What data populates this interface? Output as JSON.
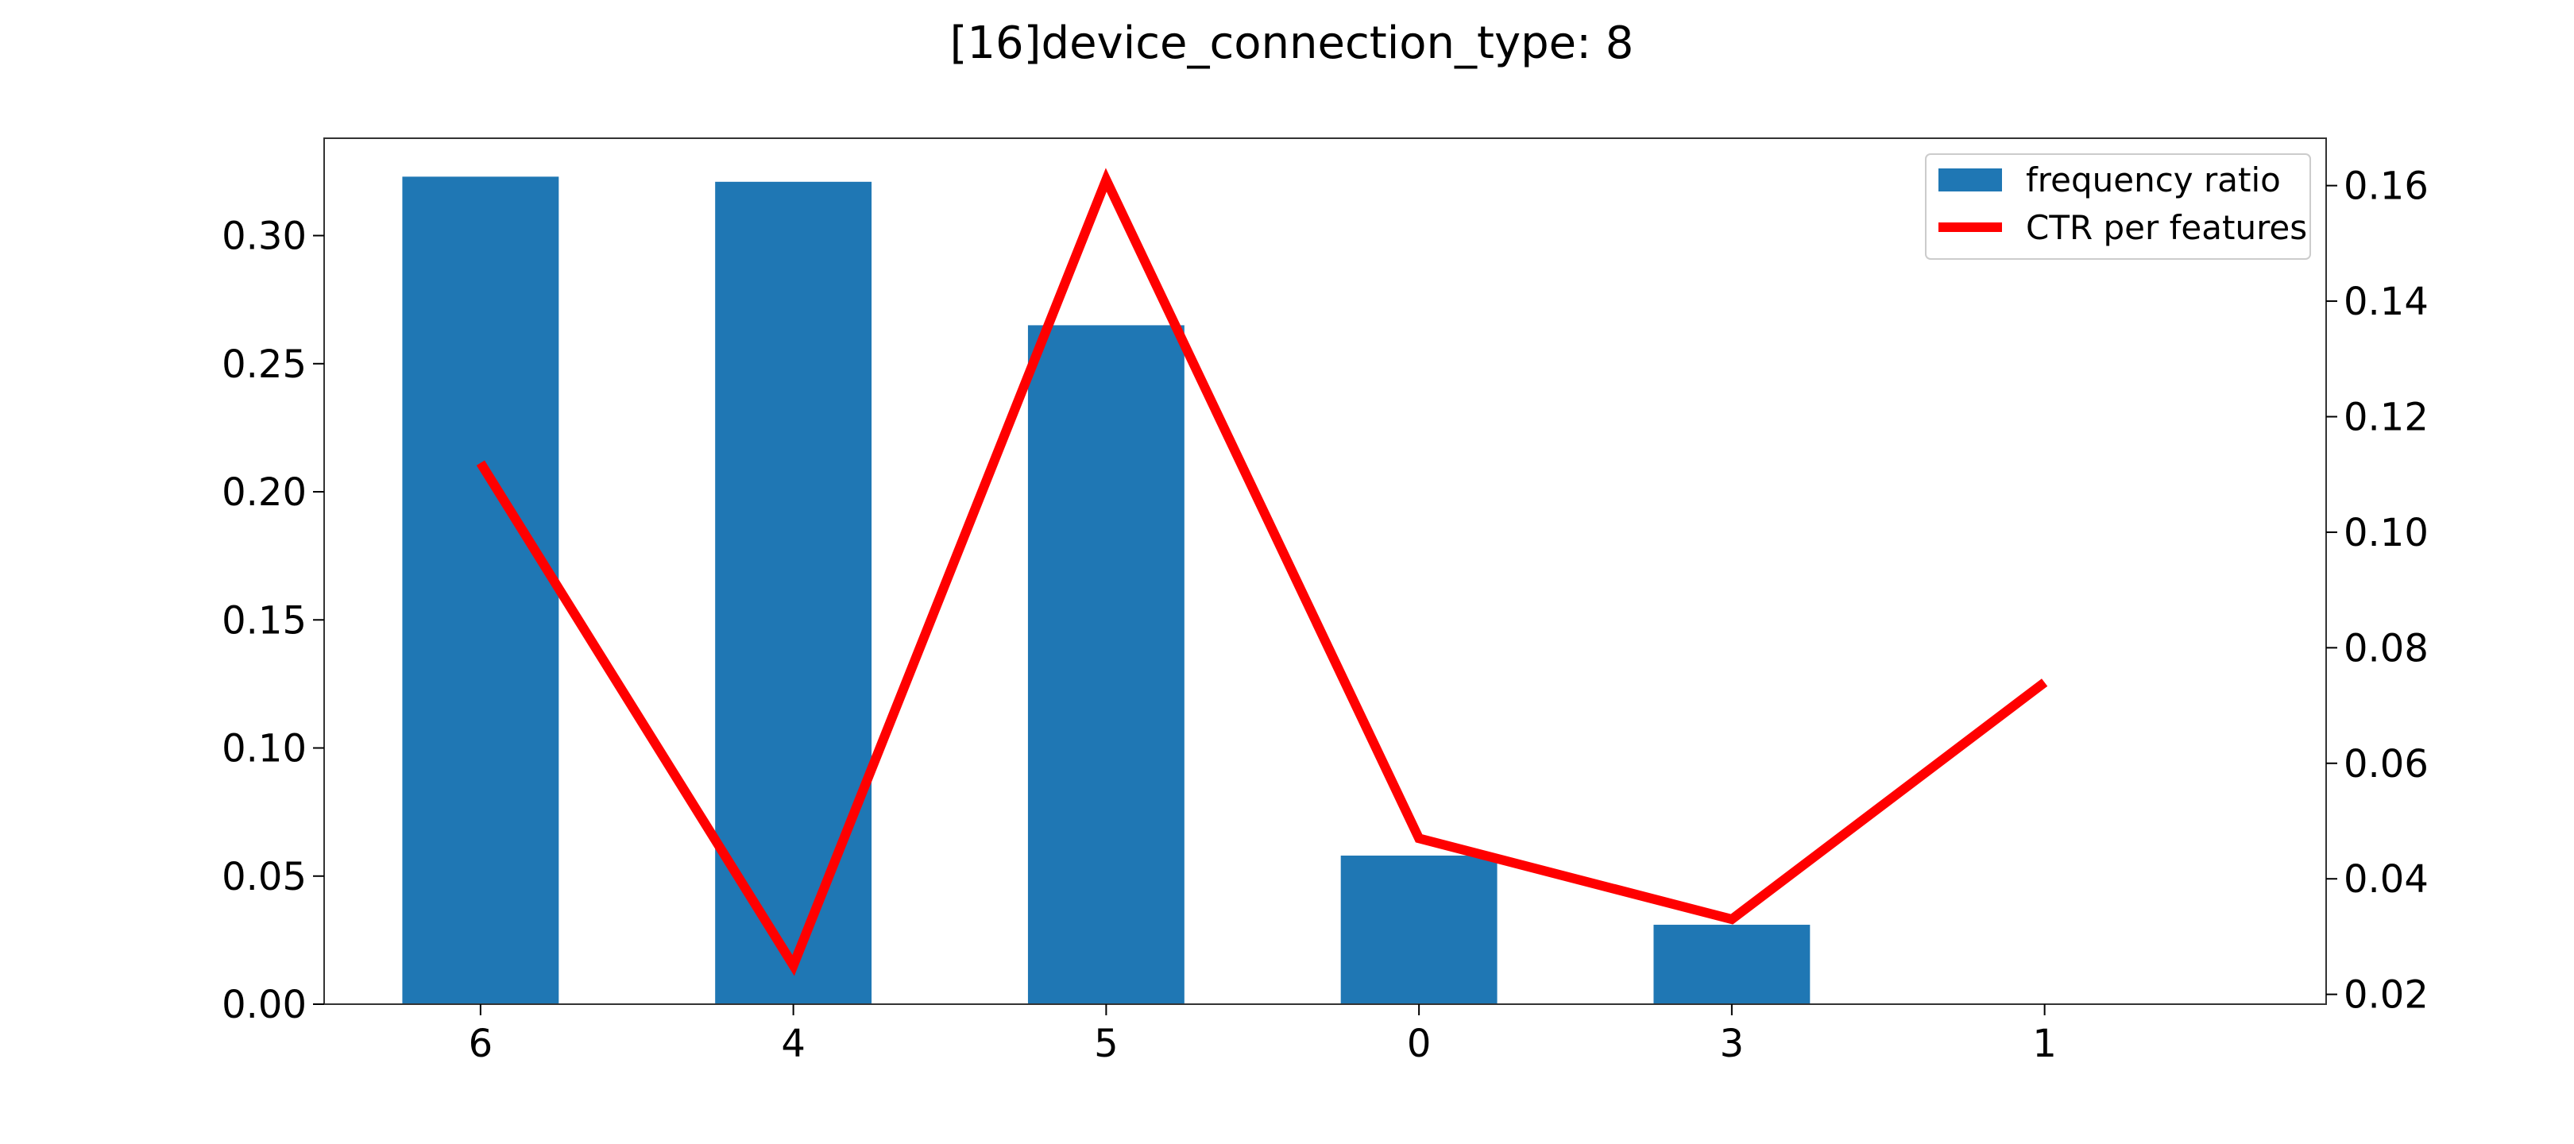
{
  "chart_data": {
    "type": "bar+line",
    "title": "[16]device_connection_type: 8",
    "categories": [
      "6",
      "4",
      "5",
      "0",
      "3",
      "1"
    ],
    "series": [
      {
        "name": "frequency ratio",
        "kind": "bar",
        "axis": "left",
        "color": "#1f77b4",
        "values": [
          0.323,
          0.321,
          0.265,
          0.058,
          0.031,
          0.0
        ]
      },
      {
        "name": "CTR per features",
        "kind": "line",
        "axis": "right",
        "color": "#ff0000",
        "values": [
          0.112,
          0.025,
          0.161,
          0.047,
          0.033,
          0.074
        ]
      }
    ],
    "y_left": {
      "ylim": [
        0,
        0.338
      ],
      "ticks": [
        "0.00",
        "0.05",
        "0.10",
        "0.15",
        "0.20",
        "0.25",
        "0.30"
      ]
    },
    "y_right": {
      "ylim": [
        0.0183,
        0.1682
      ],
      "ticks": [
        "0.02",
        "0.04",
        "0.06",
        "0.08",
        "0.10",
        "0.12",
        "0.14",
        "0.16"
      ]
    },
    "xlim": [
      -0.5,
      5.9
    ],
    "legend_position": "top-right",
    "grid": false
  }
}
